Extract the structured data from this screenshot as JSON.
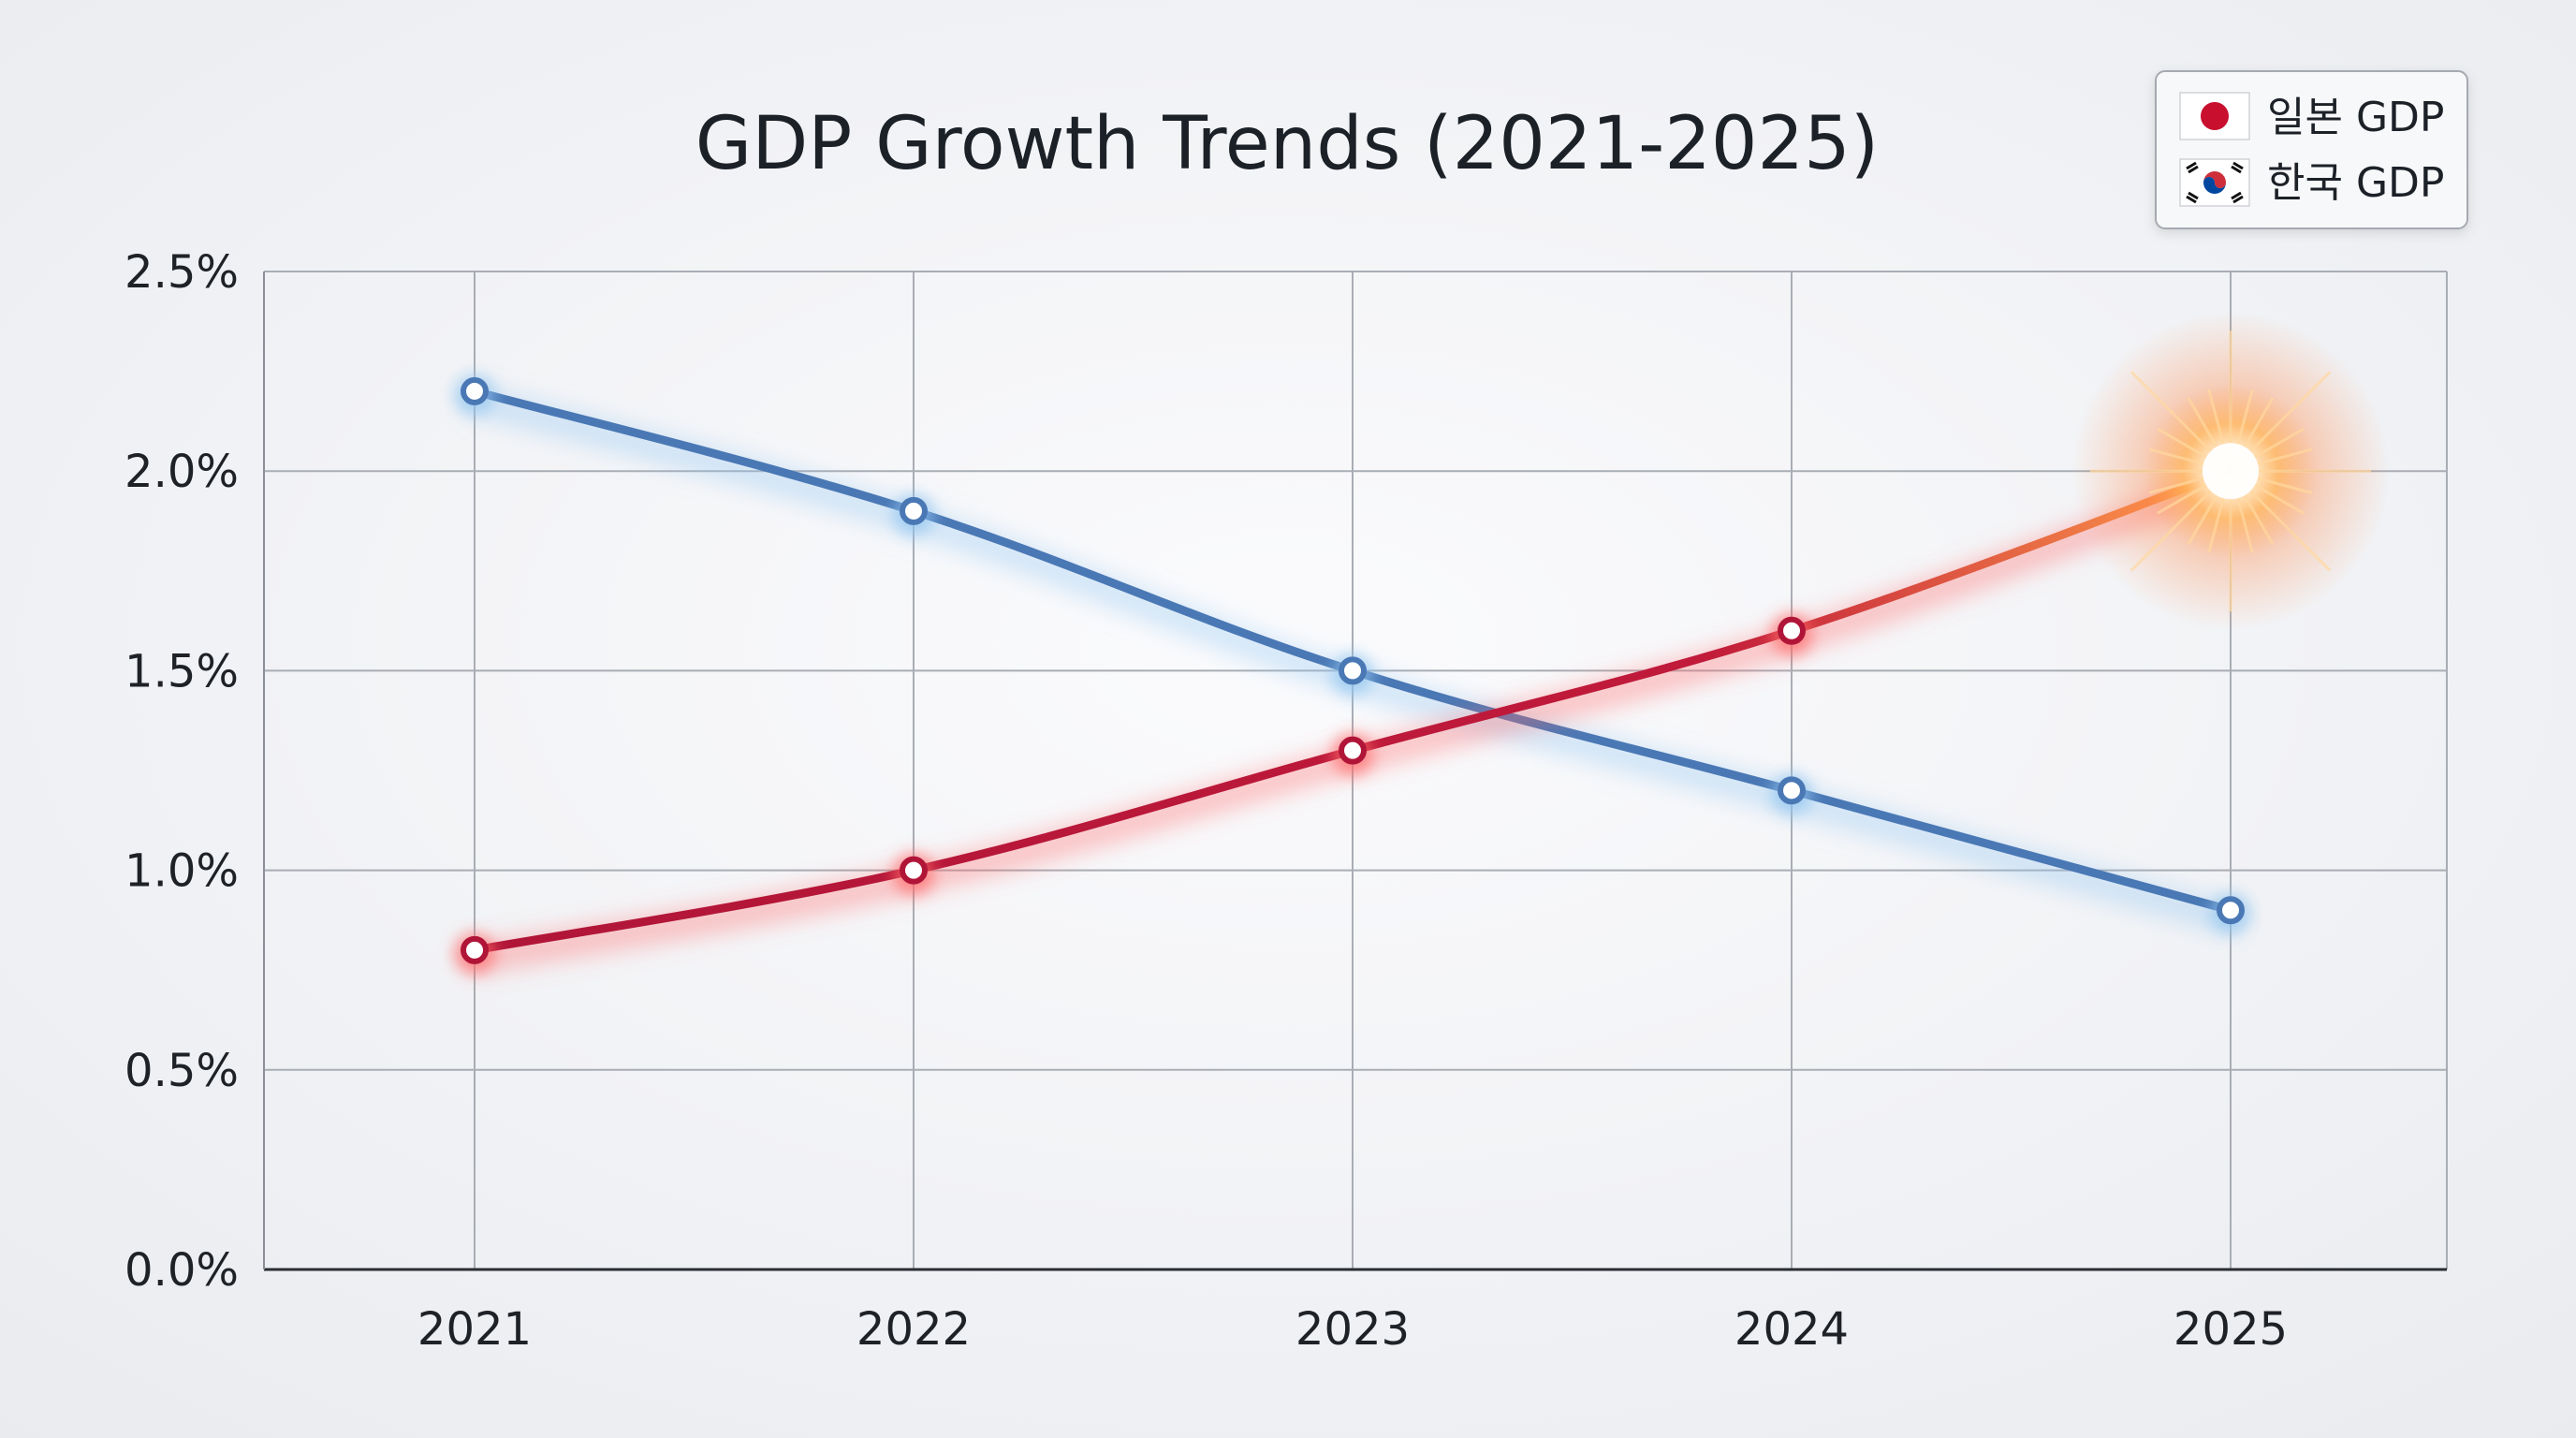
{
  "chart_data": {
    "type": "line",
    "title": "GDP Growth Trends (2021-2025)",
    "xlabel": "",
    "ylabel": "",
    "categories": [
      "2021",
      "2022",
      "2023",
      "2024",
      "2025"
    ],
    "ylim": [
      0,
      2.5
    ],
    "yticks": [
      0,
      0.5,
      1.0,
      1.5,
      2.0,
      2.5
    ],
    "ytick_labels": [
      "0.0%",
      "0.5%",
      "1.0%",
      "1.5%",
      "2.0%",
      "2.5%"
    ],
    "grid": true,
    "legend_position": "top-right",
    "series": [
      {
        "name": "일본 GDP",
        "flag": "japan-flag",
        "color": "#b01538",
        "glow": "#ff6a6a",
        "values": [
          0.8,
          1.0,
          1.3,
          1.6,
          2.0
        ]
      },
      {
        "name": "한국 GDP",
        "flag": "korea-flag",
        "color": "#4a78b5",
        "glow": "#8fc4f0",
        "values": [
          2.2,
          1.9,
          1.5,
          1.2,
          0.9
        ]
      }
    ],
    "highlight": {
      "series": 0,
      "point": 4,
      "style": "sunburst",
      "color": "#ffb060"
    }
  }
}
